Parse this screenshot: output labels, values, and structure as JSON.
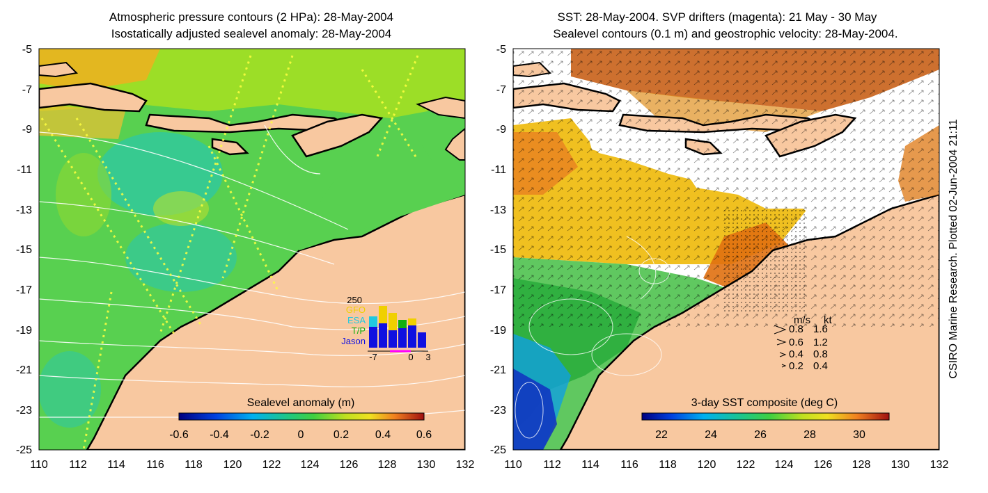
{
  "left_panel": {
    "title_line1": "Atmospheric pressure contours (2 HPa): 28-May-2004",
    "title_line2": "Isostatically adjusted sealevel anomaly: 28-May-2004",
    "colorbar": {
      "label": "Sealevel anomaly (m)",
      "ticks": [
        "-0.6",
        "-0.4",
        "-0.2",
        "0",
        "0.2",
        "0.4",
        "0.6"
      ]
    },
    "altimeter_inset": {
      "max_label": "250",
      "x_ticks": [
        "-7",
        "0",
        "3"
      ],
      "legend": [
        {
          "name": "GFO",
          "color": "#f0d000"
        },
        {
          "name": "ESA",
          "color": "#20c8e0"
        },
        {
          "name": "T/P",
          "color": "#10b010"
        },
        {
          "name": "Jason",
          "color": "#1010e0"
        }
      ]
    }
  },
  "right_panel": {
    "title_line1": "SST: 28-May-2004. SVP drifters (magenta): 21 May - 30 May",
    "title_line2": "Sealevel contours (0.1 m) and geostrophic velocity: 28-May-2004.",
    "colorbar": {
      "label": "3-day SST composite (deg C)",
      "ticks": [
        "22",
        "24",
        "26",
        "28",
        "30"
      ]
    },
    "velocity_legend": {
      "header_ms": "m/s",
      "header_kt": "kt",
      "rows": [
        {
          "ms": "0.8",
          "kt": "1.6"
        },
        {
          "ms": "0.6",
          "kt": "1.2"
        },
        {
          "ms": "0.4",
          "kt": "0.8"
        },
        {
          "ms": "0.2",
          "kt": "0.4"
        }
      ]
    }
  },
  "axes": {
    "y_ticks": [
      "-5",
      "-7",
      "-9",
      "-11",
      "-13",
      "-15",
      "-17",
      "-19",
      "-21",
      "-23",
      "-25"
    ],
    "x_ticks": [
      "110",
      "112",
      "114",
      "116",
      "118",
      "120",
      "122",
      "124",
      "126",
      "128",
      "130",
      "132"
    ]
  },
  "credit": "CSIRO Marine Research. Plotted 02-Jun-2004 21:11",
  "colors": {
    "land": "#f8c8a0",
    "sla_main": "#58d050",
    "sla_high": "#a8e020",
    "sla_low": "#30c8a0",
    "sst_warm": "#e07010",
    "sst_mid": "#f0c020",
    "sst_cool": "#30b040",
    "sst_cold": "#1030c0"
  }
}
